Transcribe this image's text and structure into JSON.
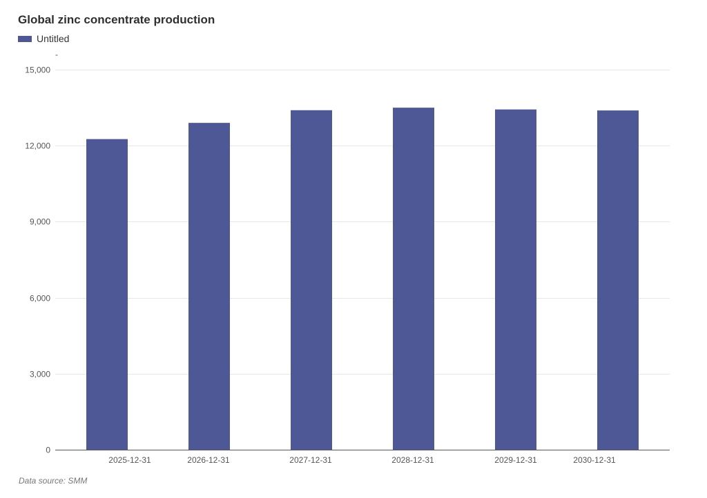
{
  "chart_data": {
    "type": "bar",
    "title": "Global zinc concentrate production",
    "y_unit": "-",
    "categories": [
      "2025-12-31",
      "2026-12-31",
      "2027-12-31",
      "2028-12-31",
      "2029-12-31",
      "2030-12-31"
    ],
    "series": [
      {
        "name": "Untitled",
        "color": "#4e5896",
        "values": [
          12260,
          12900,
          13400,
          13500,
          13430,
          13390
        ]
      }
    ],
    "ylim": [
      0,
      15000
    ],
    "yticks": [
      0,
      3000,
      6000,
      9000,
      12000,
      15000
    ],
    "ytick_labels": [
      "0",
      "3,000",
      "6,000",
      "9,000",
      "12,000",
      "15,000"
    ],
    "grid": true,
    "legend_position": "top-left"
  },
  "source": "Data source:  SMM"
}
